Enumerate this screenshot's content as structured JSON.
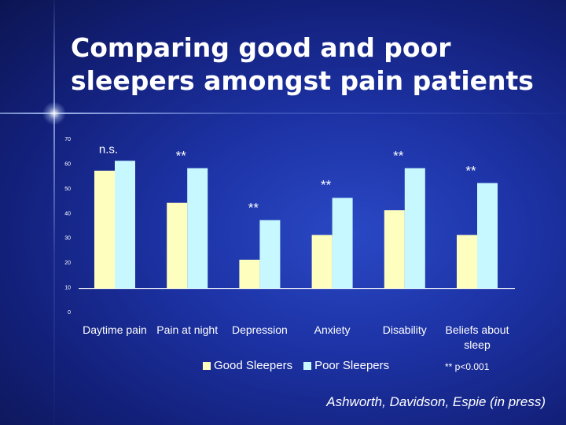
{
  "slide": {
    "title_line1": "Comparing good and poor",
    "title_line2": "sleepers amongst pain patients",
    "citation": "Ashworth, Davidson, Espie (in press)"
  },
  "chart_data": {
    "type": "bar",
    "title": "",
    "xlabel": "",
    "ylabel": "",
    "ylim": [
      0,
      70
    ],
    "y_ticks": [
      0,
      10,
      20,
      30,
      40,
      50,
      60,
      70
    ],
    "categories": [
      [
        "Daytime pain"
      ],
      [
        "Pain at night"
      ],
      [
        "Depression"
      ],
      [
        "Anxiety"
      ],
      [
        "Disability"
      ],
      [
        "Beliefs about",
        "sleep"
      ]
    ],
    "series": [
      {
        "name": "Good Sleepers",
        "color": "#fefebe",
        "values": [
          57,
          44,
          21,
          31,
          41,
          31
        ]
      },
      {
        "name": "Poor Sleepers",
        "color": "#c8f8ff",
        "values": [
          61,
          58,
          37,
          46,
          58,
          52
        ]
      }
    ],
    "significance": [
      "n.s.",
      "**",
      "**",
      "**",
      "**",
      "**"
    ],
    "significance_note": "** p<0.001",
    "colors": {
      "plot_background": "#ffffff",
      "baseline": "#ffffff"
    }
  }
}
